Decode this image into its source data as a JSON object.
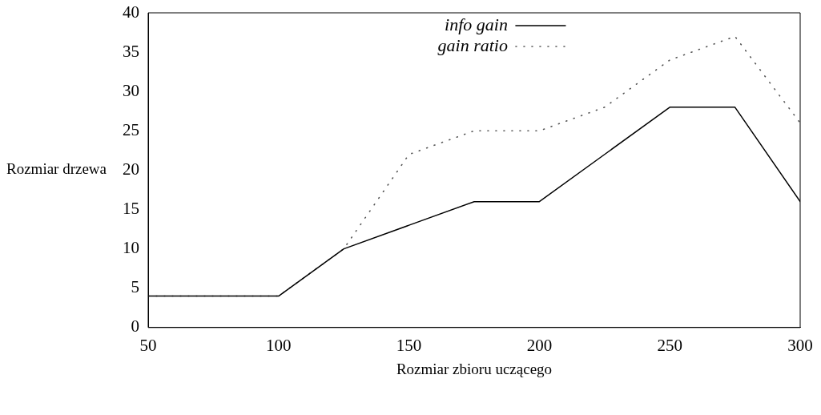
{
  "chart_data": {
    "type": "line",
    "xlabel": "Rozmiar zbioru uczącego",
    "ylabel": "Rozmiar drzewa",
    "x": [
      50,
      75,
      100,
      125,
      150,
      175,
      200,
      225,
      250,
      275,
      300
    ],
    "series": [
      {
        "name": "info gain",
        "color": "#000000",
        "line_style": "solid",
        "values": [
          4,
          4,
          4,
          10,
          13,
          16,
          16,
          22,
          28,
          28,
          16
        ]
      },
      {
        "name": "gain ratio",
        "color": "#555555",
        "line_style": "dotted",
        "values": [
          4,
          4,
          4,
          10,
          22,
          25,
          25,
          28,
          34,
          37,
          26
        ]
      }
    ],
    "xlim": [
      50,
      300
    ],
    "xticks": [
      50,
      100,
      150,
      200,
      250,
      300
    ],
    "ylim": [
      0,
      40
    ],
    "yticks": [
      0,
      5,
      10,
      15,
      20,
      25,
      30,
      35,
      40
    ],
    "grid": false,
    "legend": "top right",
    "marker": "none"
  }
}
